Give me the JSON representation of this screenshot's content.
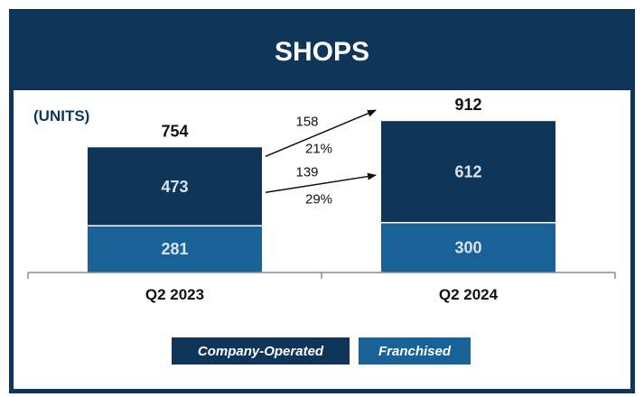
{
  "header": {
    "title": "SHOPS"
  },
  "units_label": "(UNITS)",
  "colors": {
    "company_operated": "#0f3558",
    "franchised": "#186298",
    "header_bg": "#0f3558",
    "axis": "#8c8c8c"
  },
  "chart_data": {
    "type": "bar",
    "stacked": true,
    "title": "SHOPS",
    "ylabel": "(UNITS)",
    "categories": [
      "Q2 2023",
      "Q2 2024"
    ],
    "series": [
      {
        "name": "Franchised",
        "values": [
          281,
          300
        ],
        "color": "#186298"
      },
      {
        "name": "Company-Operated",
        "values": [
          473,
          612
        ],
        "color": "#0f3558"
      }
    ],
    "totals": [
      754,
      912
    ],
    "ylim": [
      0,
      1000
    ],
    "annotations": [
      {
        "series": "Total",
        "change": "158",
        "percent": "21%"
      },
      {
        "series": "Company-Operated",
        "change": "139",
        "percent": "29%"
      }
    ],
    "legend": {
      "position": "bottom",
      "entries": [
        "Company-Operated",
        "Franchised"
      ]
    },
    "grid": false
  }
}
